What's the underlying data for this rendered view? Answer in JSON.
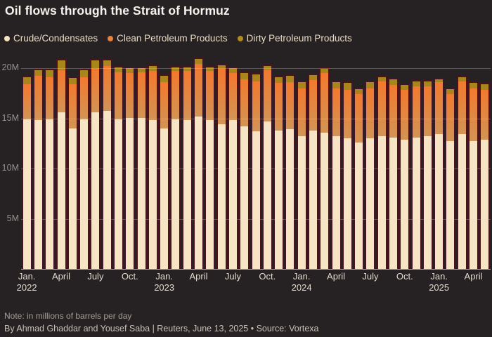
{
  "title": "Oil flows through the Strait of Hormuz",
  "legend": [
    {
      "label": "Crude/Condensates",
      "color": "#f5e2c0"
    },
    {
      "label": "Clean Petroleum Products",
      "color": "#e8823a"
    },
    {
      "label": "Dirty Petroleum Products",
      "color": "#b28a1e"
    }
  ],
  "note": "Note: in millions of barrels per day",
  "byline": "By Ahmad Ghaddar and Yousef Saba | Reuters, June 13, 2025 • Source: Vortexa",
  "colors": {
    "background": "#262223",
    "bar_border": "#471423",
    "crude": "#f6e4c5",
    "clean_top": "#f2792f",
    "clean_bottom": "#d29455",
    "dirty": "#a9861b",
    "grid": "rgba(233,212,204,0.30)",
    "axis_line": "#d3c7bd"
  },
  "chart_data": {
    "type": "bar",
    "stacked": true,
    "title": "Oil flows through the Strait of Hormuz",
    "unit": "millions of barrels per day",
    "ylim": [
      0,
      20.9
    ],
    "grid": true,
    "legend_position": "top",
    "y_ticks": [
      {
        "value": 5,
        "label": "5M"
      },
      {
        "value": 10,
        "label": "10M"
      },
      {
        "value": 15,
        "label": "15M"
      },
      {
        "value": 20,
        "label": "20M"
      }
    ],
    "x_ticks": [
      {
        "index": 0,
        "label": "Jan.",
        "year": "2022"
      },
      {
        "index": 3,
        "label": "April"
      },
      {
        "index": 6,
        "label": "July"
      },
      {
        "index": 9,
        "label": "Oct."
      },
      {
        "index": 12,
        "label": "Jan.",
        "year": "2023"
      },
      {
        "index": 15,
        "label": "April"
      },
      {
        "index": 18,
        "label": "July"
      },
      {
        "index": 21,
        "label": "Oct."
      },
      {
        "index": 24,
        "label": "Jan.",
        "year": "2024"
      },
      {
        "index": 27,
        "label": "April"
      },
      {
        "index": 30,
        "label": "July"
      },
      {
        "index": 33,
        "label": "Oct."
      },
      {
        "index": 36,
        "label": "Jan.",
        "year": "2025"
      },
      {
        "index": 39,
        "label": "April"
      }
    ],
    "categories": [
      "Jan 2022",
      "Feb 2022",
      "Mar 2022",
      "Apr 2022",
      "May 2022",
      "Jun 2022",
      "Jul 2022",
      "Aug 2022",
      "Sep 2022",
      "Oct 2022",
      "Nov 2022",
      "Dec 2022",
      "Jan 2023",
      "Feb 2023",
      "Mar 2023",
      "Apr 2023",
      "May 2023",
      "Jun 2023",
      "Jul 2023",
      "Aug 2023",
      "Sep 2023",
      "Oct 2023",
      "Nov 2023",
      "Dec 2023",
      "Jan 2024",
      "Feb 2024",
      "Mar 2024",
      "Apr 2024",
      "May 2024",
      "Jun 2024",
      "Jul 2024",
      "Aug 2024",
      "Sep 2024",
      "Oct 2024",
      "Nov 2024",
      "Dec 2024",
      "Jan 2025",
      "Feb 2025",
      "Mar 2025",
      "Apr 2025",
      "May 2025"
    ],
    "series": [
      {
        "name": "Crude/Condensates",
        "values": [
          14.9,
          14.8,
          14.9,
          15.6,
          14.0,
          14.9,
          15.6,
          15.7,
          14.9,
          15.0,
          15.0,
          14.8,
          14.0,
          14.9,
          14.8,
          15.2,
          14.8,
          14.4,
          14.8,
          14.2,
          13.7,
          14.7,
          13.8,
          13.9,
          13.2,
          13.8,
          13.6,
          13.2,
          13.0,
          12.6,
          13.0,
          13.2,
          13.1,
          12.9,
          13.1,
          13.2,
          13.4,
          12.7,
          13.4,
          12.7,
          12.9
        ]
      },
      {
        "name": "Clean Petroleum Products",
        "values": [
          3.5,
          4.4,
          4.2,
          4.2,
          4.4,
          4.2,
          4.3,
          4.5,
          4.7,
          4.5,
          4.6,
          4.9,
          4.6,
          4.8,
          4.9,
          5.2,
          4.9,
          5.5,
          4.7,
          4.7,
          5.0,
          5.1,
          4.7,
          4.7,
          4.8,
          5.0,
          5.9,
          4.8,
          4.8,
          4.8,
          5.0,
          5.5,
          5.2,
          4.9,
          5.1,
          5.0,
          5.2,
          4.7,
          5.3,
          5.3,
          4.9
        ]
      },
      {
        "name": "Dirty Petroleum Products",
        "values": [
          0.7,
          0.6,
          0.7,
          1.0,
          0.6,
          0.7,
          0.9,
          0.6,
          0.5,
          0.5,
          0.4,
          0.5,
          0.6,
          0.4,
          0.4,
          0.5,
          0.4,
          0.4,
          0.5,
          0.6,
          0.7,
          0.4,
          0.6,
          0.6,
          0.6,
          0.5,
          0.4,
          0.6,
          0.7,
          0.5,
          0.6,
          0.4,
          0.6,
          0.5,
          0.5,
          0.5,
          0.3,
          0.5,
          0.4,
          0.5,
          0.6
        ]
      }
    ]
  }
}
